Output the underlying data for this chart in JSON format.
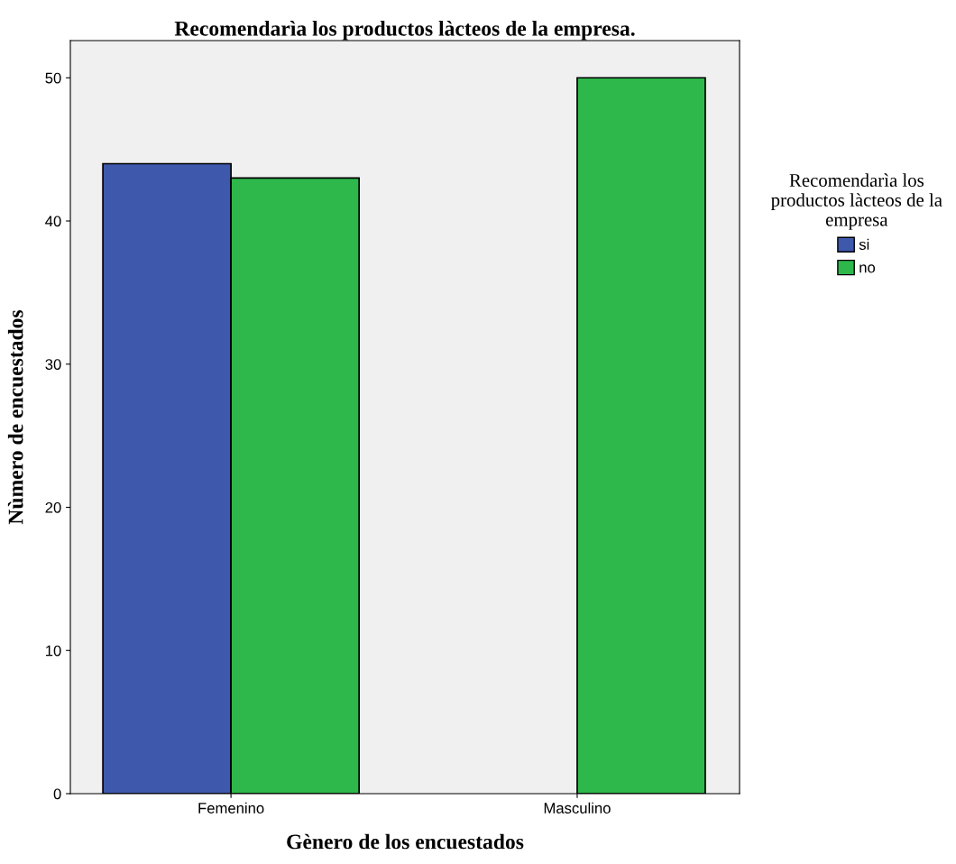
{
  "chart_data": {
    "type": "bar",
    "title": "Recomendarìa los productos làcteos de la empresa.",
    "xlabel": "Gènero de los encuestados",
    "ylabel": "Nùmero de encuestados",
    "legend_title": "Recomendarìa los\nproductos làcteos de la\nempresa",
    "categories": [
      "Femenino",
      "Masculino"
    ],
    "series": [
      {
        "name": "si",
        "color": "#3e58ac",
        "values": [
          44,
          null
        ]
      },
      {
        "name": "no",
        "color": "#2eb84b",
        "values": [
          43,
          50
        ]
      }
    ],
    "ylim": [
      0,
      52.6
    ],
    "yticks": [
      0,
      10,
      20,
      30,
      40,
      50
    ],
    "grid": false,
    "legend": "right"
  }
}
